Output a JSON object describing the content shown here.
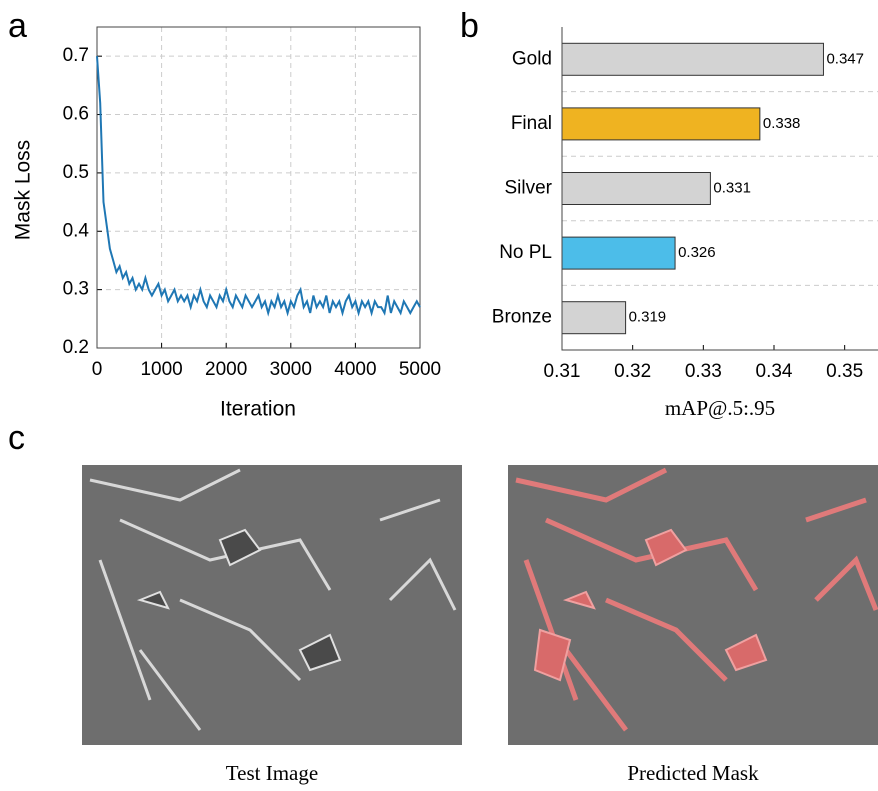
{
  "panels": [
    "a",
    "b",
    "c"
  ],
  "chart_data": [
    {
      "type": "line",
      "ylabel": "Mask Loss",
      "xlabel": "Iteration",
      "color": "#1f77b4",
      "xlim": [
        0,
        5000
      ],
      "xticks": [
        0,
        1000,
        2000,
        3000,
        4000,
        5000
      ],
      "ylim": [
        0.2,
        0.75
      ],
      "yticks": [
        0.2,
        0.3,
        0.4,
        0.5,
        0.6,
        0.7
      ],
      "grid": true,
      "x": [
        0,
        50,
        100,
        150,
        200,
        250,
        300,
        350,
        400,
        450,
        500,
        550,
        600,
        650,
        700,
        750,
        800,
        850,
        900,
        950,
        1000,
        1050,
        1100,
        1150,
        1200,
        1250,
        1300,
        1350,
        1400,
        1450,
        1500,
        1550,
        1600,
        1650,
        1700,
        1750,
        1800,
        1850,
        1900,
        1950,
        2000,
        2050,
        2100,
        2150,
        2200,
        2250,
        2300,
        2350,
        2400,
        2450,
        2500,
        2550,
        2600,
        2650,
        2700,
        2750,
        2800,
        2850,
        2900,
        2950,
        3000,
        3050,
        3100,
        3150,
        3200,
        3250,
        3300,
        3350,
        3400,
        3450,
        3500,
        3550,
        3600,
        3650,
        3700,
        3750,
        3800,
        3850,
        3900,
        3950,
        4000,
        4050,
        4100,
        4150,
        4200,
        4250,
        4300,
        4350,
        4400,
        4450,
        4500,
        4550,
        4600,
        4650,
        4700,
        4750,
        4800,
        4850,
        4900,
        4950,
        5000
      ],
      "values": [
        0.7,
        0.62,
        0.45,
        0.41,
        0.37,
        0.35,
        0.33,
        0.34,
        0.32,
        0.33,
        0.31,
        0.32,
        0.3,
        0.31,
        0.3,
        0.32,
        0.3,
        0.29,
        0.3,
        0.31,
        0.29,
        0.3,
        0.28,
        0.29,
        0.3,
        0.28,
        0.29,
        0.28,
        0.29,
        0.27,
        0.29,
        0.28,
        0.3,
        0.28,
        0.27,
        0.29,
        0.28,
        0.27,
        0.29,
        0.28,
        0.3,
        0.28,
        0.27,
        0.29,
        0.28,
        0.27,
        0.29,
        0.28,
        0.27,
        0.28,
        0.29,
        0.27,
        0.28,
        0.26,
        0.28,
        0.27,
        0.29,
        0.27,
        0.28,
        0.26,
        0.28,
        0.27,
        0.29,
        0.3,
        0.27,
        0.28,
        0.26,
        0.29,
        0.27,
        0.28,
        0.27,
        0.29,
        0.26,
        0.28,
        0.27,
        0.28,
        0.26,
        0.28,
        0.29,
        0.27,
        0.28,
        0.26,
        0.28,
        0.27,
        0.28,
        0.26,
        0.28,
        0.27,
        0.27,
        0.26,
        0.29,
        0.26,
        0.28,
        0.27,
        0.26,
        0.28,
        0.27,
        0.26,
        0.27,
        0.28,
        0.27
      ]
    },
    {
      "type": "bar",
      "orientation": "horizontal",
      "xlabel": "mAP@.5:.95",
      "categories": [
        "Gold",
        "Final",
        "Silver",
        "No PL",
        "Bronze"
      ],
      "values": [
        0.347,
        0.338,
        0.331,
        0.326,
        0.319
      ],
      "colors": [
        "#d3d3d3",
        "#efb321",
        "#d3d3d3",
        "#4cbde9",
        "#d3d3d3"
      ],
      "xlim": [
        0.31,
        0.355
      ],
      "xticks": [
        0.31,
        0.32,
        0.33,
        0.34,
        0.35
      ],
      "grid": true
    }
  ],
  "images": [
    {
      "caption": "Test Image"
    },
    {
      "caption": "Predicted Mask"
    }
  ]
}
